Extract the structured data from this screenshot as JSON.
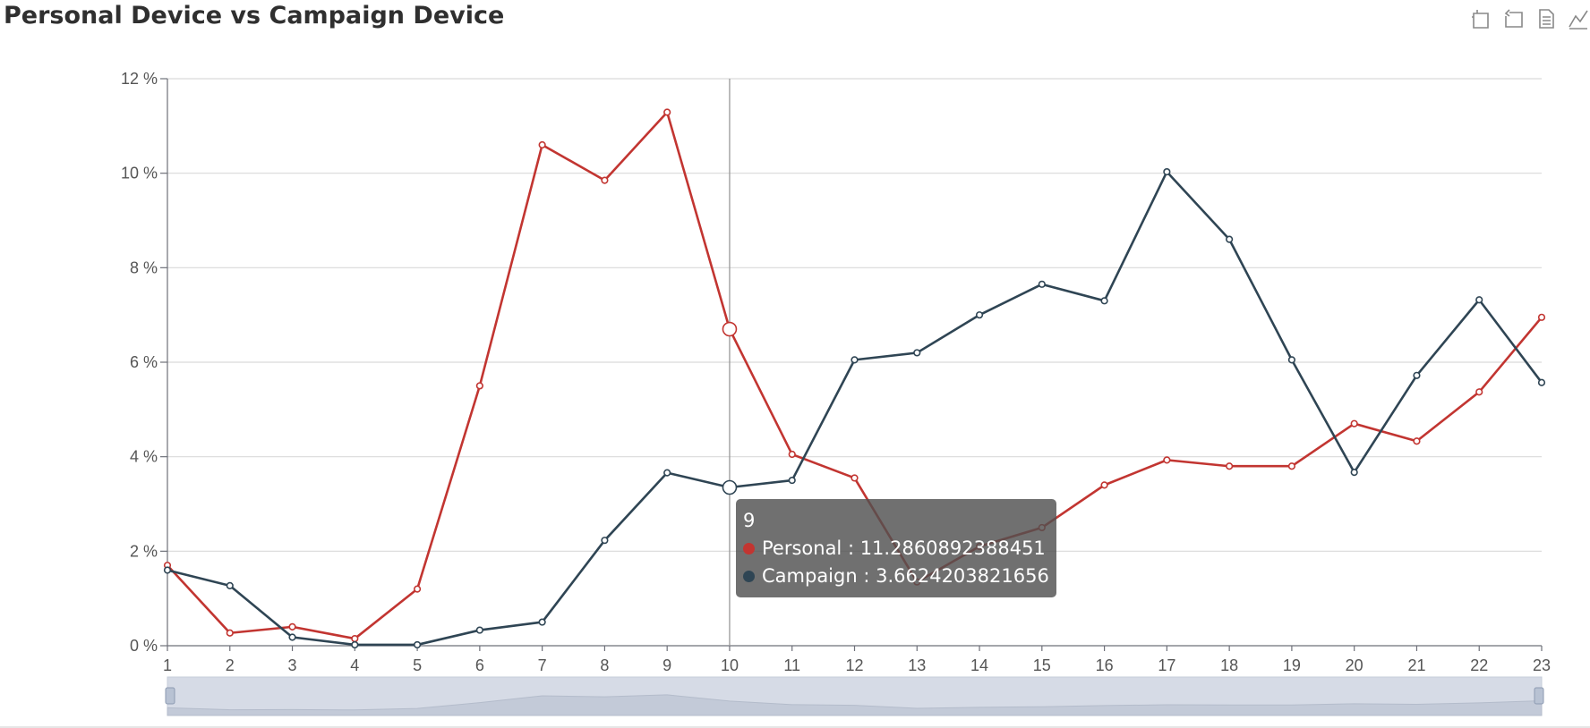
{
  "title": "Personal Device vs Campaign Device",
  "toolbox": {
    "items": [
      {
        "name": "zoom-icon"
      },
      {
        "name": "zoom-reset-icon"
      },
      {
        "name": "data-view-icon"
      },
      {
        "name": "line-type-icon"
      }
    ],
    "color": "#888888"
  },
  "tooltip": {
    "header": "9",
    "rows": [
      {
        "label": "Personal : 11.2860892388451",
        "color": "#c23531"
      },
      {
        "label": "Campaign : 3.6624203821656",
        "color": "#2f4554"
      }
    ]
  },
  "chart_data": {
    "type": "line",
    "title": "Personal Device vs Campaign Device",
    "x": [
      "1",
      "2",
      "3",
      "4",
      "5",
      "6",
      "7",
      "8",
      "9",
      "10",
      "11",
      "12",
      "13",
      "14",
      "15",
      "16",
      "17",
      "18",
      "19",
      "20",
      "21",
      "22",
      "23"
    ],
    "ylim": [
      0,
      12
    ],
    "y_ticks": [
      "0 %",
      "2 %",
      "4 %",
      "6 %",
      "8 %",
      "10 %",
      "12 %"
    ],
    "grid": true,
    "highlighted_x": "10",
    "series": [
      {
        "name": "Personal",
        "color": "#c23531",
        "values": [
          1.7,
          0.27,
          0.4,
          0.15,
          1.2,
          5.5,
          10.6,
          9.85,
          11.29,
          6.7,
          4.05,
          3.55,
          1.35,
          2.1,
          2.5,
          3.4,
          3.93,
          3.8,
          3.8,
          4.7,
          4.33,
          5.37,
          6.95
        ]
      },
      {
        "name": "Campaign",
        "color": "#2f4554",
        "values": [
          1.6,
          1.27,
          0.18,
          0.02,
          0.02,
          0.33,
          0.5,
          2.23,
          3.66,
          3.35,
          3.5,
          6.05,
          6.2,
          7.0,
          7.65,
          7.3,
          10.03,
          8.6,
          6.05,
          3.67,
          5.72,
          7.32,
          5.57
        ]
      }
    ]
  }
}
